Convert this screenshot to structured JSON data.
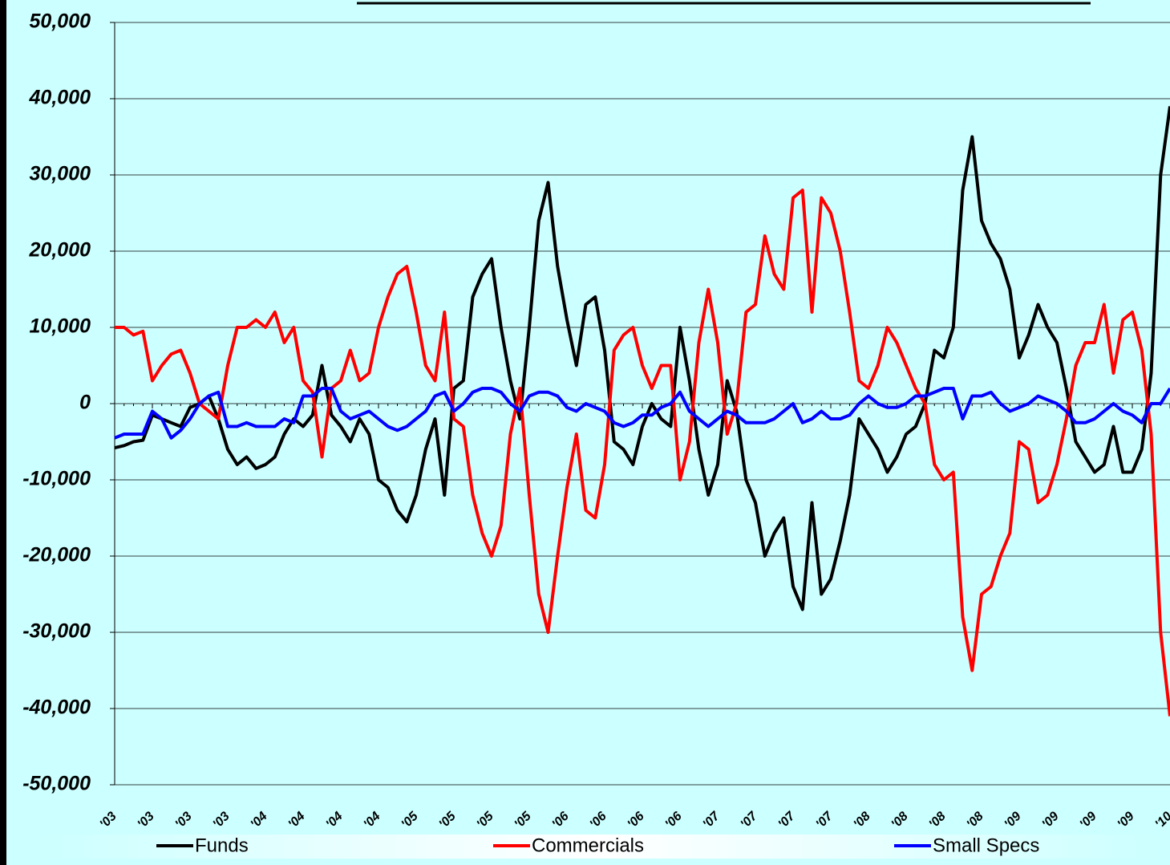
{
  "chart_data": {
    "type": "line",
    "categories": [
      "'03",
      null,
      null,
      null,
      "'03",
      null,
      null,
      null,
      "'03",
      null,
      null,
      null,
      "'03",
      null,
      null,
      null,
      "'04",
      null,
      null,
      null,
      "'04",
      null,
      null,
      null,
      "'04",
      null,
      null,
      null,
      "'04",
      null,
      null,
      null,
      "'05",
      null,
      null,
      null,
      "'05",
      null,
      null,
      null,
      "'05",
      null,
      null,
      null,
      "'05",
      null,
      null,
      null,
      "'06",
      null,
      null,
      null,
      "'06",
      null,
      null,
      null,
      "'06",
      null,
      null,
      null,
      "'06",
      null,
      null,
      null,
      "'07",
      null,
      null,
      null,
      "'07",
      null,
      null,
      null,
      "'07",
      null,
      null,
      null,
      "'07",
      null,
      null,
      null,
      "'08",
      null,
      null,
      null,
      "'08",
      null,
      null,
      null,
      "'08",
      null,
      null,
      null,
      "'08",
      null,
      null,
      null,
      "'09",
      null,
      null,
      null,
      "'09",
      null,
      null,
      null,
      "'09",
      null,
      null,
      null,
      "'09",
      null,
      null,
      null,
      "'10"
    ],
    "series": [
      {
        "name": "Funds",
        "color": "#000000",
        "values": [
          -5800,
          -5500,
          -5000,
          -4800,
          -1500,
          -2000,
          -2500,
          -3000,
          -500,
          0,
          1000,
          -2000,
          -6000,
          -8000,
          -7000,
          -8500,
          -8000,
          -7000,
          -4000,
          -2000,
          -3000,
          -1500,
          5000,
          -1500,
          -3000,
          -5000,
          -2000,
          -4000,
          -10000,
          -11000,
          -14000,
          -15500,
          -12000,
          -6000,
          -2000,
          -12000,
          2000,
          3000,
          14000,
          17000,
          19000,
          10000,
          3000,
          -2000,
          10000,
          24000,
          29000,
          18000,
          11000,
          5000,
          13000,
          14000,
          7000,
          -5000,
          -6000,
          -8000,
          -3000,
          0,
          -2000,
          -3000,
          10000,
          3000,
          -6000,
          -12000,
          -8000,
          3000,
          -1000,
          -10000,
          -13000,
          -20000,
          -17000,
          -15000,
          -24000,
          -27000,
          -13000,
          -25000,
          -23000,
          -18000,
          -12000,
          -2000,
          -4000,
          -6000,
          -9000,
          -7000,
          -4000,
          -3000,
          0,
          7000,
          6000,
          10000,
          28000,
          35000,
          24000,
          21000,
          19000,
          15000,
          6000,
          9000,
          13000,
          10000,
          8000,
          2000,
          -5000,
          -7000,
          -9000,
          -8000,
          -3000,
          -9000,
          -9000,
          -6000,
          4000,
          30000,
          39000
        ]
      },
      {
        "name": "Commercials",
        "color": "#ff0000",
        "values": [
          10000,
          10000,
          9000,
          9500,
          3000,
          5000,
          6500,
          7000,
          4000,
          0,
          -1000,
          -2000,
          5000,
          10000,
          10000,
          11000,
          10000,
          12000,
          8000,
          10000,
          3000,
          1500,
          -7000,
          2000,
          3000,
          7000,
          3000,
          4000,
          10000,
          14000,
          17000,
          18000,
          12000,
          5000,
          3000,
          12000,
          -2000,
          -3000,
          -12000,
          -17000,
          -20000,
          -16000,
          -4000,
          2000,
          -12000,
          -25000,
          -30000,
          -20000,
          -11000,
          -4000,
          -14000,
          -15000,
          -8000,
          7000,
          9000,
          10000,
          5000,
          2000,
          5000,
          5000,
          -10000,
          -5000,
          8000,
          15000,
          8000,
          -4000,
          0,
          12000,
          13000,
          22000,
          17000,
          15000,
          27000,
          28000,
          12000,
          27000,
          25000,
          20000,
          12000,
          3000,
          2000,
          5000,
          10000,
          8000,
          5000,
          2000,
          0,
          -8000,
          -10000,
          -9000,
          -28000,
          -35000,
          -25000,
          -24000,
          -20000,
          -17000,
          -5000,
          -6000,
          -13000,
          -12000,
          -8000,
          -2000,
          5000,
          8000,
          8000,
          13000,
          4000,
          11000,
          12000,
          7000,
          -4000,
          -30000,
          -41000
        ]
      },
      {
        "name": "Small Specs",
        "color": "#0000ff",
        "values": [
          -4500,
          -4000,
          -4000,
          -4000,
          -1000,
          -2000,
          -4500,
          -3500,
          -2000,
          0,
          1000,
          1500,
          -3000,
          -3000,
          -2500,
          -3000,
          -3000,
          -3000,
          -2000,
          -2500,
          1000,
          1000,
          2000,
          2000,
          -1000,
          -2000,
          -1500,
          -1000,
          -2000,
          -3000,
          -3500,
          -3000,
          -2000,
          -1000,
          1000,
          1500,
          -1000,
          0,
          1500,
          2000,
          2000,
          1500,
          0,
          -1000,
          1000,
          1500,
          1500,
          1000,
          -500,
          -1000,
          0,
          -500,
          -1000,
          -2500,
          -3000,
          -2500,
          -1500,
          -1500,
          -500,
          0,
          1500,
          -1000,
          -2000,
          -3000,
          -2000,
          -1000,
          -1500,
          -2500,
          -2500,
          -2500,
          -2000,
          -1000,
          0,
          -2500,
          -2000,
          -1000,
          -2000,
          -2000,
          -1500,
          0,
          1000,
          0,
          -500,
          -500,
          0,
          1000,
          1000,
          1500,
          2000,
          2000,
          -2000,
          1000,
          1000,
          1500,
          0,
          -1000,
          -500,
          0,
          1000,
          500,
          0,
          -1000,
          -2500,
          -2500,
          -2000,
          -1000,
          0,
          -1000,
          -1500,
          -2500,
          0,
          0,
          2000
        ]
      }
    ],
    "ylim": [
      -50000,
      50000
    ],
    "yticks": [
      {
        "value": -50000,
        "label": "-50,000"
      },
      {
        "value": -40000,
        "label": "-40,000"
      },
      {
        "value": -30000,
        "label": "-30,000"
      },
      {
        "value": -20000,
        "label": "-20,000"
      },
      {
        "value": -10000,
        "label": "-10,000"
      },
      0,
      {
        "value": 10000,
        "label": "10,000"
      },
      {
        "value": 20000,
        "label": "20,000"
      },
      {
        "value": 30000,
        "label": "30,000"
      },
      {
        "value": 40000,
        "label": "40,000"
      },
      {
        "value": 50000,
        "label": "50,000"
      }
    ],
    "grid": true,
    "legend": "bottom"
  }
}
